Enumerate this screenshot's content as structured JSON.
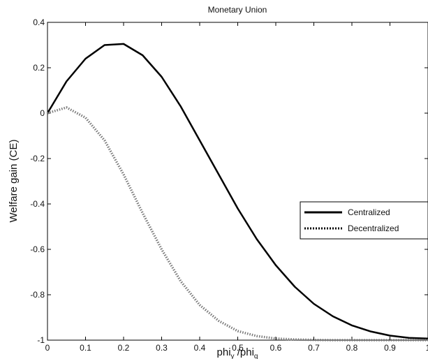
{
  "chart_data": {
    "type": "line",
    "title": "Monetary Union",
    "xlabel": {
      "base1": "phi",
      "sub1": "y",
      "mid": " /phi",
      "sub2": "q"
    },
    "ylabel": "Welfare gain (CE)",
    "xlim": [
      0,
      1
    ],
    "ylim": [
      -1,
      0.4
    ],
    "xticks": [
      0,
      0.1,
      0.2,
      0.3,
      0.4,
      0.5,
      0.6,
      0.7,
      0.8,
      0.9,
      1
    ],
    "xtick_labels": [
      "0",
      "0.1",
      "0.2",
      "0.3",
      "0.4",
      "0.5",
      "0.6",
      "0.7",
      "0.8",
      "0.9",
      "1"
    ],
    "yticks": [
      -1,
      -0.8,
      -0.6,
      -0.4,
      -0.2,
      0,
      0.2,
      0.4
    ],
    "ytick_labels": [
      "-1",
      "-0.8",
      "-0.6",
      "-0.4",
      "-0.2",
      "0",
      "0.2",
      "0.4"
    ],
    "grid": false,
    "legend_position": "center-right",
    "series": [
      {
        "name": "Centralized",
        "style": "solid",
        "color": "#000000",
        "x": [
          0,
          0.05,
          0.1,
          0.15,
          0.2,
          0.25,
          0.3,
          0.35,
          0.4,
          0.45,
          0.5,
          0.55,
          0.6,
          0.65,
          0.7,
          0.75,
          0.8,
          0.85,
          0.9,
          0.95,
          1.0
        ],
        "y": [
          0.0,
          0.14,
          0.24,
          0.3,
          0.305,
          0.255,
          0.16,
          0.03,
          -0.12,
          -0.27,
          -0.42,
          -0.555,
          -0.67,
          -0.765,
          -0.84,
          -0.895,
          -0.935,
          -0.962,
          -0.98,
          -0.99,
          -0.993
        ]
      },
      {
        "name": "Decentralized",
        "style": "dotted",
        "color": "#7a7a7a",
        "x": [
          0,
          0.05,
          0.1,
          0.15,
          0.2,
          0.25,
          0.3,
          0.35,
          0.4,
          0.45,
          0.5,
          0.55,
          0.6,
          0.65,
          0.7,
          0.75,
          0.8,
          0.85,
          0.9,
          0.95,
          1.0
        ],
        "y": [
          0.0,
          0.025,
          -0.02,
          -0.12,
          -0.27,
          -0.44,
          -0.6,
          -0.74,
          -0.845,
          -0.915,
          -0.96,
          -0.982,
          -0.993,
          -0.997,
          -0.999,
          -1.0,
          -1.0,
          -1.0,
          -1.0,
          -1.0,
          -1.0
        ]
      }
    ]
  }
}
